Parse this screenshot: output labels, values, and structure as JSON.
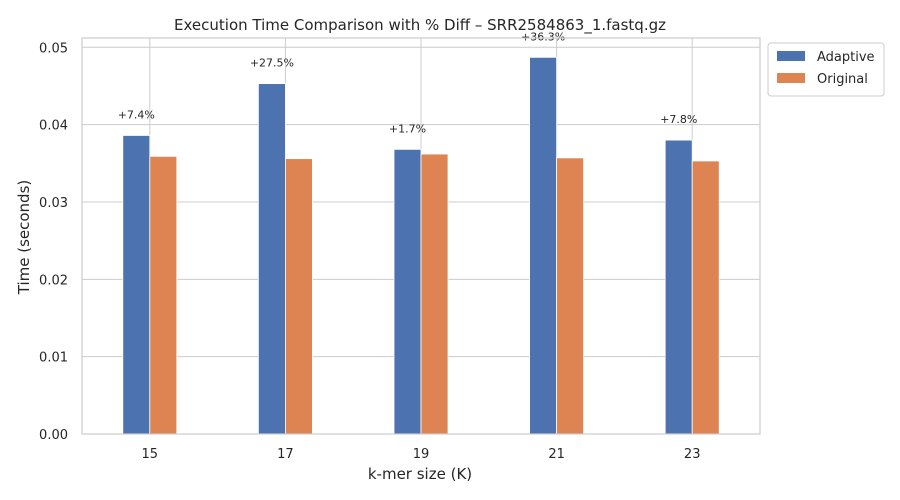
{
  "chart_data": {
    "type": "bar",
    "title": "Execution Time Comparison with % Diff – SRR2584863_1.fastq.gz",
    "xlabel": "k-mer size (K)",
    "ylabel": "Time (seconds)",
    "categories": [
      "15",
      "17",
      "19",
      "21",
      "23"
    ],
    "series": [
      {
        "name": "Adaptive",
        "color": "#4c72b0",
        "values": [
          0.0386,
          0.0453,
          0.0368,
          0.0487,
          0.038
        ]
      },
      {
        "name": "Original",
        "color": "#dd8452",
        "values": [
          0.0359,
          0.0356,
          0.0362,
          0.0357,
          0.0353
        ]
      }
    ],
    "annotations": [
      "+7.4%",
      "+27.5%",
      "+1.7%",
      "+36.3%",
      "+7.8%"
    ],
    "ylim": [
      0,
      0.0512
    ],
    "yticks": [
      0.0,
      0.01,
      0.02,
      0.03,
      0.04,
      0.05
    ],
    "ytick_labels": [
      "0.00",
      "0.01",
      "0.02",
      "0.03",
      "0.04",
      "0.05"
    ],
    "grid": true,
    "legend_position": "outside top-right"
  }
}
